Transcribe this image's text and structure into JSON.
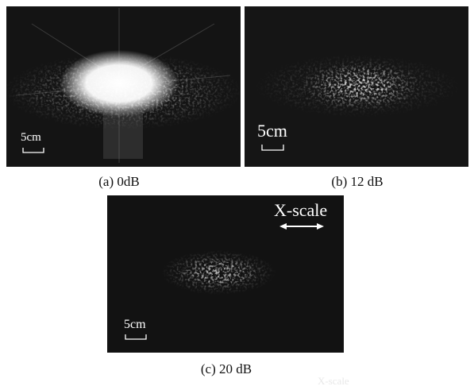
{
  "panels": [
    {
      "caption": "(a) 0dB",
      "scale_label": "5cm"
    },
    {
      "caption": "(b) 12 dB",
      "scale_label": "5cm"
    },
    {
      "caption": "(c) 20 dB",
      "scale_label": "5cm",
      "axis_label": "X-scale"
    }
  ],
  "watermark": "X-scale"
}
